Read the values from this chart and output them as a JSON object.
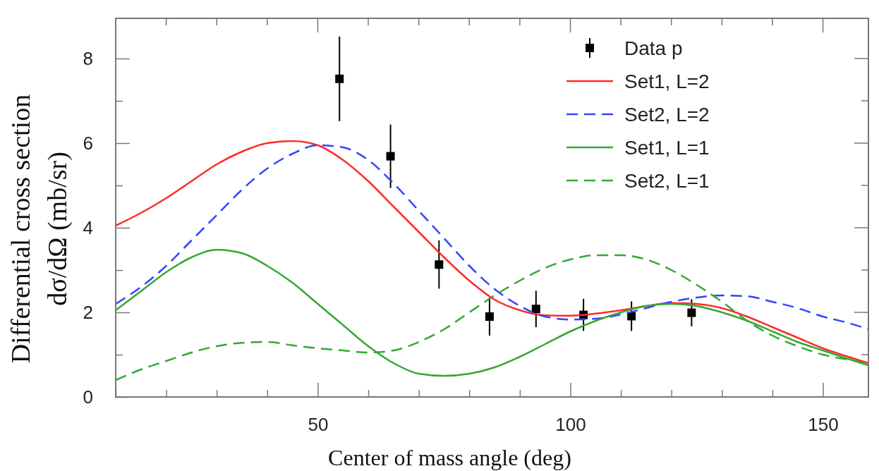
{
  "chart_data": {
    "type": "line",
    "xlabel": "Center of mass angle (deg)",
    "ylabel": "Differential cross section\ndσ/dΩ  (mb/sr)",
    "xlim": [
      10,
      159
    ],
    "ylim": [
      0,
      8.95
    ],
    "xticks": [
      50,
      100,
      150,
      {
        "value": 10,
        "label": null
      },
      {
        "value": 20,
        "label": null
      },
      {
        "value": 30,
        "label": null
      },
      {
        "value": 40,
        "label": null
      },
      {
        "value": 60,
        "label": null
      },
      {
        "value": 70,
        "label": null
      },
      {
        "value": 80,
        "label": null
      },
      {
        "value": 90,
        "label": null
      },
      {
        "value": 110,
        "label": null
      },
      {
        "value": 120,
        "label": null
      },
      {
        "value": 130,
        "label": null
      },
      {
        "value": 140,
        "label": null
      }
    ],
    "yticks": [
      0,
      2,
      4,
      6,
      8,
      {
        "value": 1,
        "label": null
      },
      {
        "value": 3,
        "label": null
      },
      {
        "value": 5,
        "label": null
      },
      {
        "value": 7,
        "label": null
      }
    ],
    "grid": false,
    "legend": "top right",
    "series": [
      {
        "name": "Data p",
        "type": "scatter",
        "marker": "square",
        "color": "#000000",
        "x": [
          54.3,
          64.4,
          74,
          84,
          93.2,
          102.6,
          112.1,
          124
        ],
        "values": [
          7.52,
          5.69,
          3.13,
          1.9,
          2.08,
          1.94,
          1.91,
          1.99
        ],
        "errors": [
          1.0,
          0.75,
          0.57,
          0.45,
          0.43,
          0.38,
          0.35,
          0.32
        ]
      },
      {
        "name": "Set1, L=2",
        "line_style": "solid",
        "color": "#ff2a2a",
        "x": [
          10,
          15,
          20,
          25,
          30,
          35,
          40,
          45,
          50,
          55,
          60,
          65,
          70,
          75,
          80,
          85,
          90,
          95,
          100,
          105,
          110,
          115,
          120,
          125,
          130,
          135,
          140,
          145,
          150,
          155,
          159
        ],
        "values": [
          4.05,
          4.35,
          4.7,
          5.1,
          5.5,
          5.8,
          6.0,
          6.05,
          5.95,
          5.6,
          5.1,
          4.5,
          3.9,
          3.3,
          2.75,
          2.3,
          2.05,
          1.93,
          1.92,
          1.97,
          2.05,
          2.15,
          2.22,
          2.2,
          2.1,
          1.9,
          1.65,
          1.4,
          1.15,
          0.95,
          0.8
        ]
      },
      {
        "name": "Set2, L=2",
        "line_style": "dashed",
        "color": "#3344ff",
        "x": [
          10,
          15,
          20,
          25,
          30,
          35,
          40,
          45,
          50,
          55,
          60,
          65,
          70,
          75,
          80,
          85,
          90,
          95,
          100,
          105,
          110,
          115,
          120,
          125,
          130,
          135,
          140,
          145,
          150,
          155,
          159
        ],
        "values": [
          2.2,
          2.6,
          3.1,
          3.7,
          4.3,
          4.9,
          5.4,
          5.75,
          5.95,
          5.9,
          5.6,
          5.05,
          4.4,
          3.75,
          3.1,
          2.55,
          2.15,
          1.9,
          1.83,
          1.85,
          1.95,
          2.1,
          2.25,
          2.35,
          2.4,
          2.38,
          2.25,
          2.1,
          1.9,
          1.75,
          1.6
        ]
      },
      {
        "name": "Set1, L=1",
        "line_style": "solid",
        "color": "#33a833",
        "x": [
          10,
          15,
          20,
          25,
          30,
          35,
          40,
          45,
          50,
          55,
          60,
          65,
          70,
          75,
          80,
          85,
          90,
          95,
          100,
          105,
          110,
          115,
          120,
          125,
          130,
          135,
          140,
          145,
          150,
          155,
          159
        ],
        "values": [
          2.05,
          2.5,
          2.95,
          3.3,
          3.48,
          3.4,
          3.1,
          2.7,
          2.2,
          1.7,
          1.2,
          0.8,
          0.55,
          0.5,
          0.55,
          0.7,
          0.95,
          1.25,
          1.55,
          1.8,
          2.0,
          2.15,
          2.2,
          2.15,
          2.0,
          1.8,
          1.55,
          1.3,
          1.1,
          0.9,
          0.75
        ]
      },
      {
        "name": "Set2, L=1",
        "line_style": "dashed",
        "color": "#33a833",
        "x": [
          10,
          15,
          20,
          25,
          30,
          35,
          40,
          45,
          50,
          55,
          60,
          65,
          70,
          75,
          80,
          85,
          90,
          95,
          100,
          105,
          110,
          115,
          120,
          125,
          130,
          135,
          140,
          145,
          150,
          155,
          159
        ],
        "values": [
          0.4,
          0.65,
          0.85,
          1.05,
          1.2,
          1.28,
          1.3,
          1.22,
          1.15,
          1.1,
          1.05,
          1.1,
          1.3,
          1.6,
          2.0,
          2.4,
          2.75,
          3.05,
          3.25,
          3.35,
          3.35,
          3.25,
          3.0,
          2.65,
          2.25,
          1.8,
          1.45,
          1.2,
          1.0,
          0.88,
          0.8
        ]
      }
    ]
  }
}
